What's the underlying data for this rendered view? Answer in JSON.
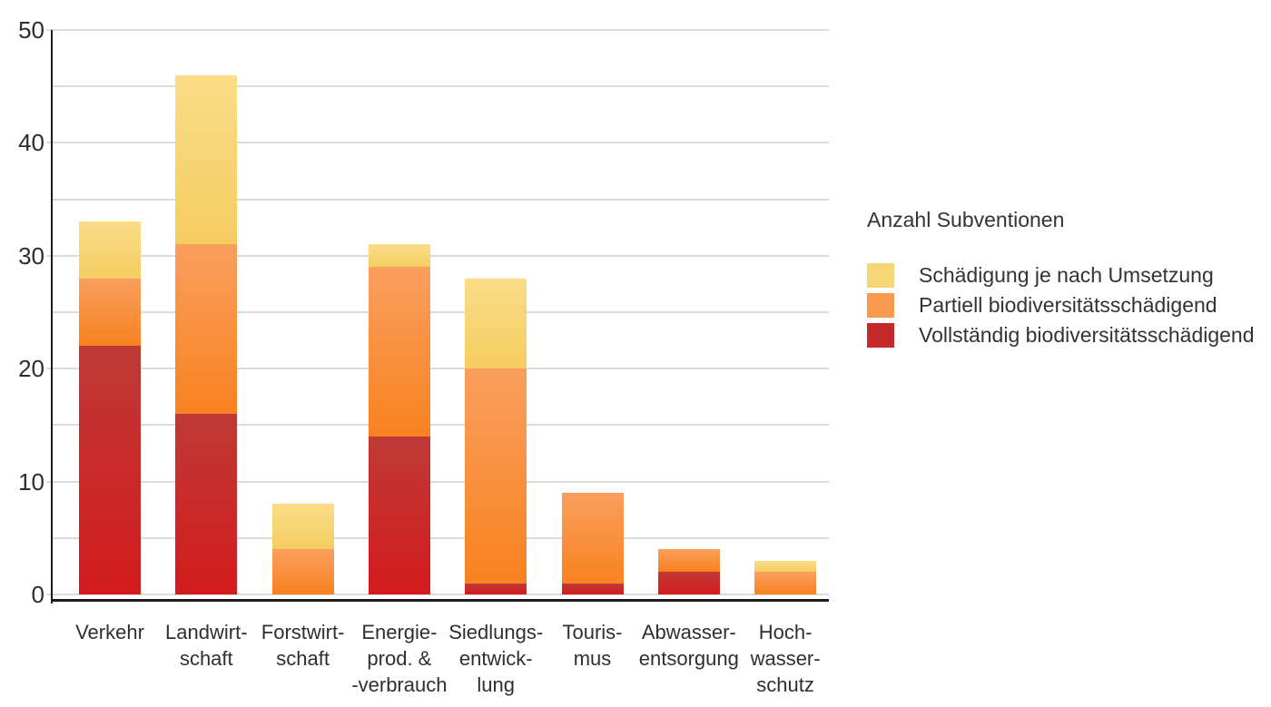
{
  "chart_data": {
    "type": "bar",
    "variant": "stacked-vertical",
    "title": "",
    "legend_title": "Anzahl Subventionen",
    "legend_position": "right",
    "grid": "horizontal, every 5 units, light gray",
    "categories": [
      {
        "label": "Verkehr",
        "lines": [
          "Verkehr"
        ]
      },
      {
        "label": "Landwirtschaft",
        "lines": [
          "Landwirt-",
          "schaft"
        ]
      },
      {
        "label": "Forstwirtschaft",
        "lines": [
          "Forstwirt-",
          "schaft"
        ]
      },
      {
        "label": "Energieprod. & -verbrauch",
        "lines": [
          "Energie-",
          "prod. &",
          "-verbrauch"
        ]
      },
      {
        "label": "Siedlungsentwicklung",
        "lines": [
          "Siedlungs-",
          "entwick-",
          "lung"
        ]
      },
      {
        "label": "Tourismus",
        "lines": [
          "Touris-",
          "mus"
        ]
      },
      {
        "label": "Abwasserentsorgung",
        "lines": [
          "Abwasser-",
          "entsorgung"
        ]
      },
      {
        "label": "Hochwasserschutz",
        "lines": [
          "Hoch-",
          "wasser-",
          "schutz"
        ]
      }
    ],
    "series": [
      {
        "name": "Vollständig biodiversitätsschädigend",
        "stack_order": "bottom",
        "values": [
          22,
          16,
          0,
          14,
          1,
          1,
          2,
          0
        ],
        "color_top": "#bf3a35",
        "color_bottom": "#d31b1e",
        "swatch_color": "#c52a2b"
      },
      {
        "name": "Partiell biodiversitätsschädigend",
        "stack_order": "middle",
        "values": [
          6,
          15,
          4,
          15,
          19,
          8,
          2,
          2
        ],
        "color_top": "#fa9f5e",
        "color_bottom": "#f88220",
        "swatch_color": "#f99a4e"
      },
      {
        "name": "Schädigung je nach Umsetzung",
        "stack_order": "top",
        "values": [
          5,
          15,
          4,
          2,
          8,
          0,
          0,
          1
        ],
        "color_top": "#fadd88",
        "color_bottom": "#f5cc60",
        "swatch_color": "#f6d577"
      }
    ],
    "stack_totals": [
      33,
      46,
      8,
      31,
      28,
      9,
      4,
      3
    ],
    "xlabel": "",
    "ylabel": "",
    "ylim": [
      0,
      50
    ],
    "y_axis": {
      "tick_labels": [
        "0",
        "10",
        "20",
        "30",
        "40",
        "50"
      ],
      "labeled_tick_step": 10,
      "gridline_step": 5
    },
    "colors": {
      "gridline": "#dcdcdc",
      "axis": "#1c1c1c",
      "text": "#2f2f2f"
    }
  }
}
